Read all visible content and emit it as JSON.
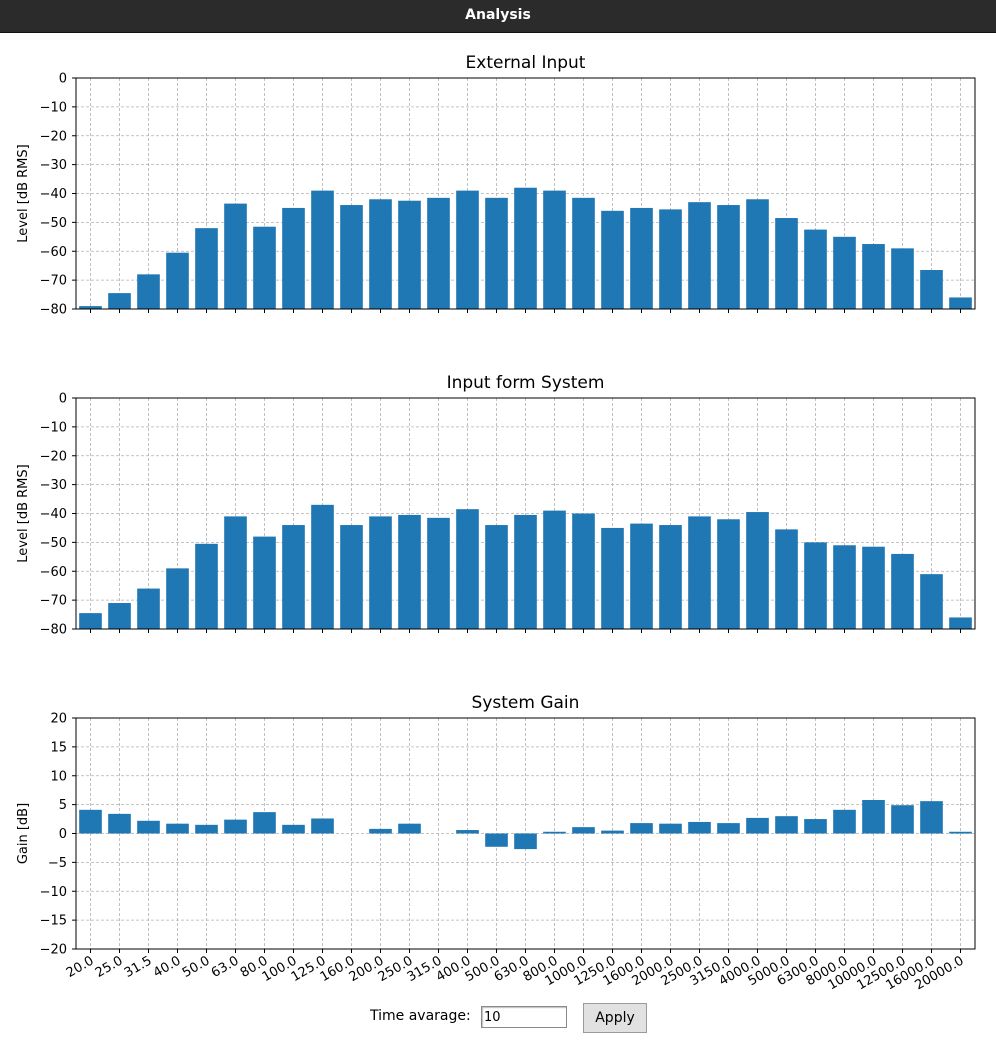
{
  "window": {
    "title": "Analysis"
  },
  "controls": {
    "time_average_label": "Time avarage:",
    "time_average_value": "10",
    "apply_label": "Apply"
  },
  "style": {
    "bar_color": "#1f77b4",
    "grid_color": "#b0b0b0"
  },
  "chart_data": [
    {
      "type": "bar",
      "title": "External Input",
      "ylabel": "Level [dB RMS]",
      "xlabel": "",
      "ylim": [
        -80,
        0
      ],
      "yticks": [
        0,
        -10,
        -20,
        -30,
        -40,
        -50,
        -60,
        -70,
        -80
      ],
      "grid": true,
      "show_xticklabels": false,
      "categories": [
        "20.0",
        "25.0",
        "31.5",
        "40.0",
        "50.0",
        "63.0",
        "80.0",
        "100.0",
        "125.0",
        "160.0",
        "200.0",
        "250.0",
        "315.0",
        "400.0",
        "500.0",
        "630.0",
        "800.0",
        "1000.0",
        "1250.0",
        "1600.0",
        "2000.0",
        "2500.0",
        "3150.0",
        "4000.0",
        "5000.0",
        "6300.0",
        "8000.0",
        "10000.0",
        "12500.0",
        "16000.0",
        "20000.0"
      ],
      "values": [
        -79,
        -74.5,
        -68,
        -60.5,
        -52,
        -43.5,
        -51.5,
        -45,
        -39,
        -44,
        -42,
        -42.5,
        -41.5,
        -39,
        -41.5,
        -38,
        -39,
        -41.5,
        -46,
        -45,
        -45.5,
        -43,
        -44,
        -42,
        -48.5,
        -52.5,
        -55,
        -57.5,
        -59,
        -66.5,
        -76
      ]
    },
    {
      "type": "bar",
      "title": "Input form System",
      "ylabel": "Level [dB RMS]",
      "xlabel": "",
      "ylim": [
        -80,
        0
      ],
      "yticks": [
        0,
        -10,
        -20,
        -30,
        -40,
        -50,
        -60,
        -70,
        -80
      ],
      "grid": true,
      "show_xticklabels": false,
      "categories": [
        "20.0",
        "25.0",
        "31.5",
        "40.0",
        "50.0",
        "63.0",
        "80.0",
        "100.0",
        "125.0",
        "160.0",
        "200.0",
        "250.0",
        "315.0",
        "400.0",
        "500.0",
        "630.0",
        "800.0",
        "1000.0",
        "1250.0",
        "1600.0",
        "2000.0",
        "2500.0",
        "3150.0",
        "4000.0",
        "5000.0",
        "6300.0",
        "8000.0",
        "10000.0",
        "12500.0",
        "16000.0",
        "20000.0"
      ],
      "values": [
        -74.5,
        -71,
        -66,
        -59,
        -50.5,
        -41,
        -48,
        -44,
        -37,
        -44,
        -41,
        -40.5,
        -41.5,
        -38.5,
        -44,
        -40.5,
        -39,
        -40,
        -45,
        -43.5,
        -44,
        -41,
        -42,
        -39.5,
        -45.5,
        -50,
        -51,
        -51.5,
        -54,
        -61,
        -76
      ]
    },
    {
      "type": "bar",
      "title": "System Gain",
      "ylabel": "Gain [dB]",
      "xlabel": "",
      "ylim": [
        -20,
        20
      ],
      "yticks": [
        20,
        15,
        10,
        5,
        0,
        -5,
        -10,
        -15,
        -20
      ],
      "grid": true,
      "show_xticklabels": true,
      "categories": [
        "20.0",
        "25.0",
        "31.5",
        "40.0",
        "50.0",
        "63.0",
        "80.0",
        "100.0",
        "125.0",
        "160.0",
        "200.0",
        "250.0",
        "315.0",
        "400.0",
        "500.0",
        "630.0",
        "800.0",
        "1000.0",
        "1250.0",
        "1600.0",
        "2000.0",
        "2500.0",
        "3150.0",
        "4000.0",
        "5000.0",
        "6300.0",
        "8000.0",
        "10000.0",
        "12500.0",
        "16000.0",
        "20000.0"
      ],
      "values": [
        4.1,
        3.4,
        2.2,
        1.7,
        1.5,
        2.4,
        3.7,
        1.5,
        2.6,
        0,
        0.8,
        1.7,
        0,
        0.6,
        -2.3,
        -2.7,
        0.3,
        1.1,
        0.5,
        1.8,
        1.7,
        2.0,
        1.8,
        2.7,
        3.0,
        2.5,
        4.1,
        5.8,
        4.9,
        5.6,
        0.3
      ]
    }
  ]
}
